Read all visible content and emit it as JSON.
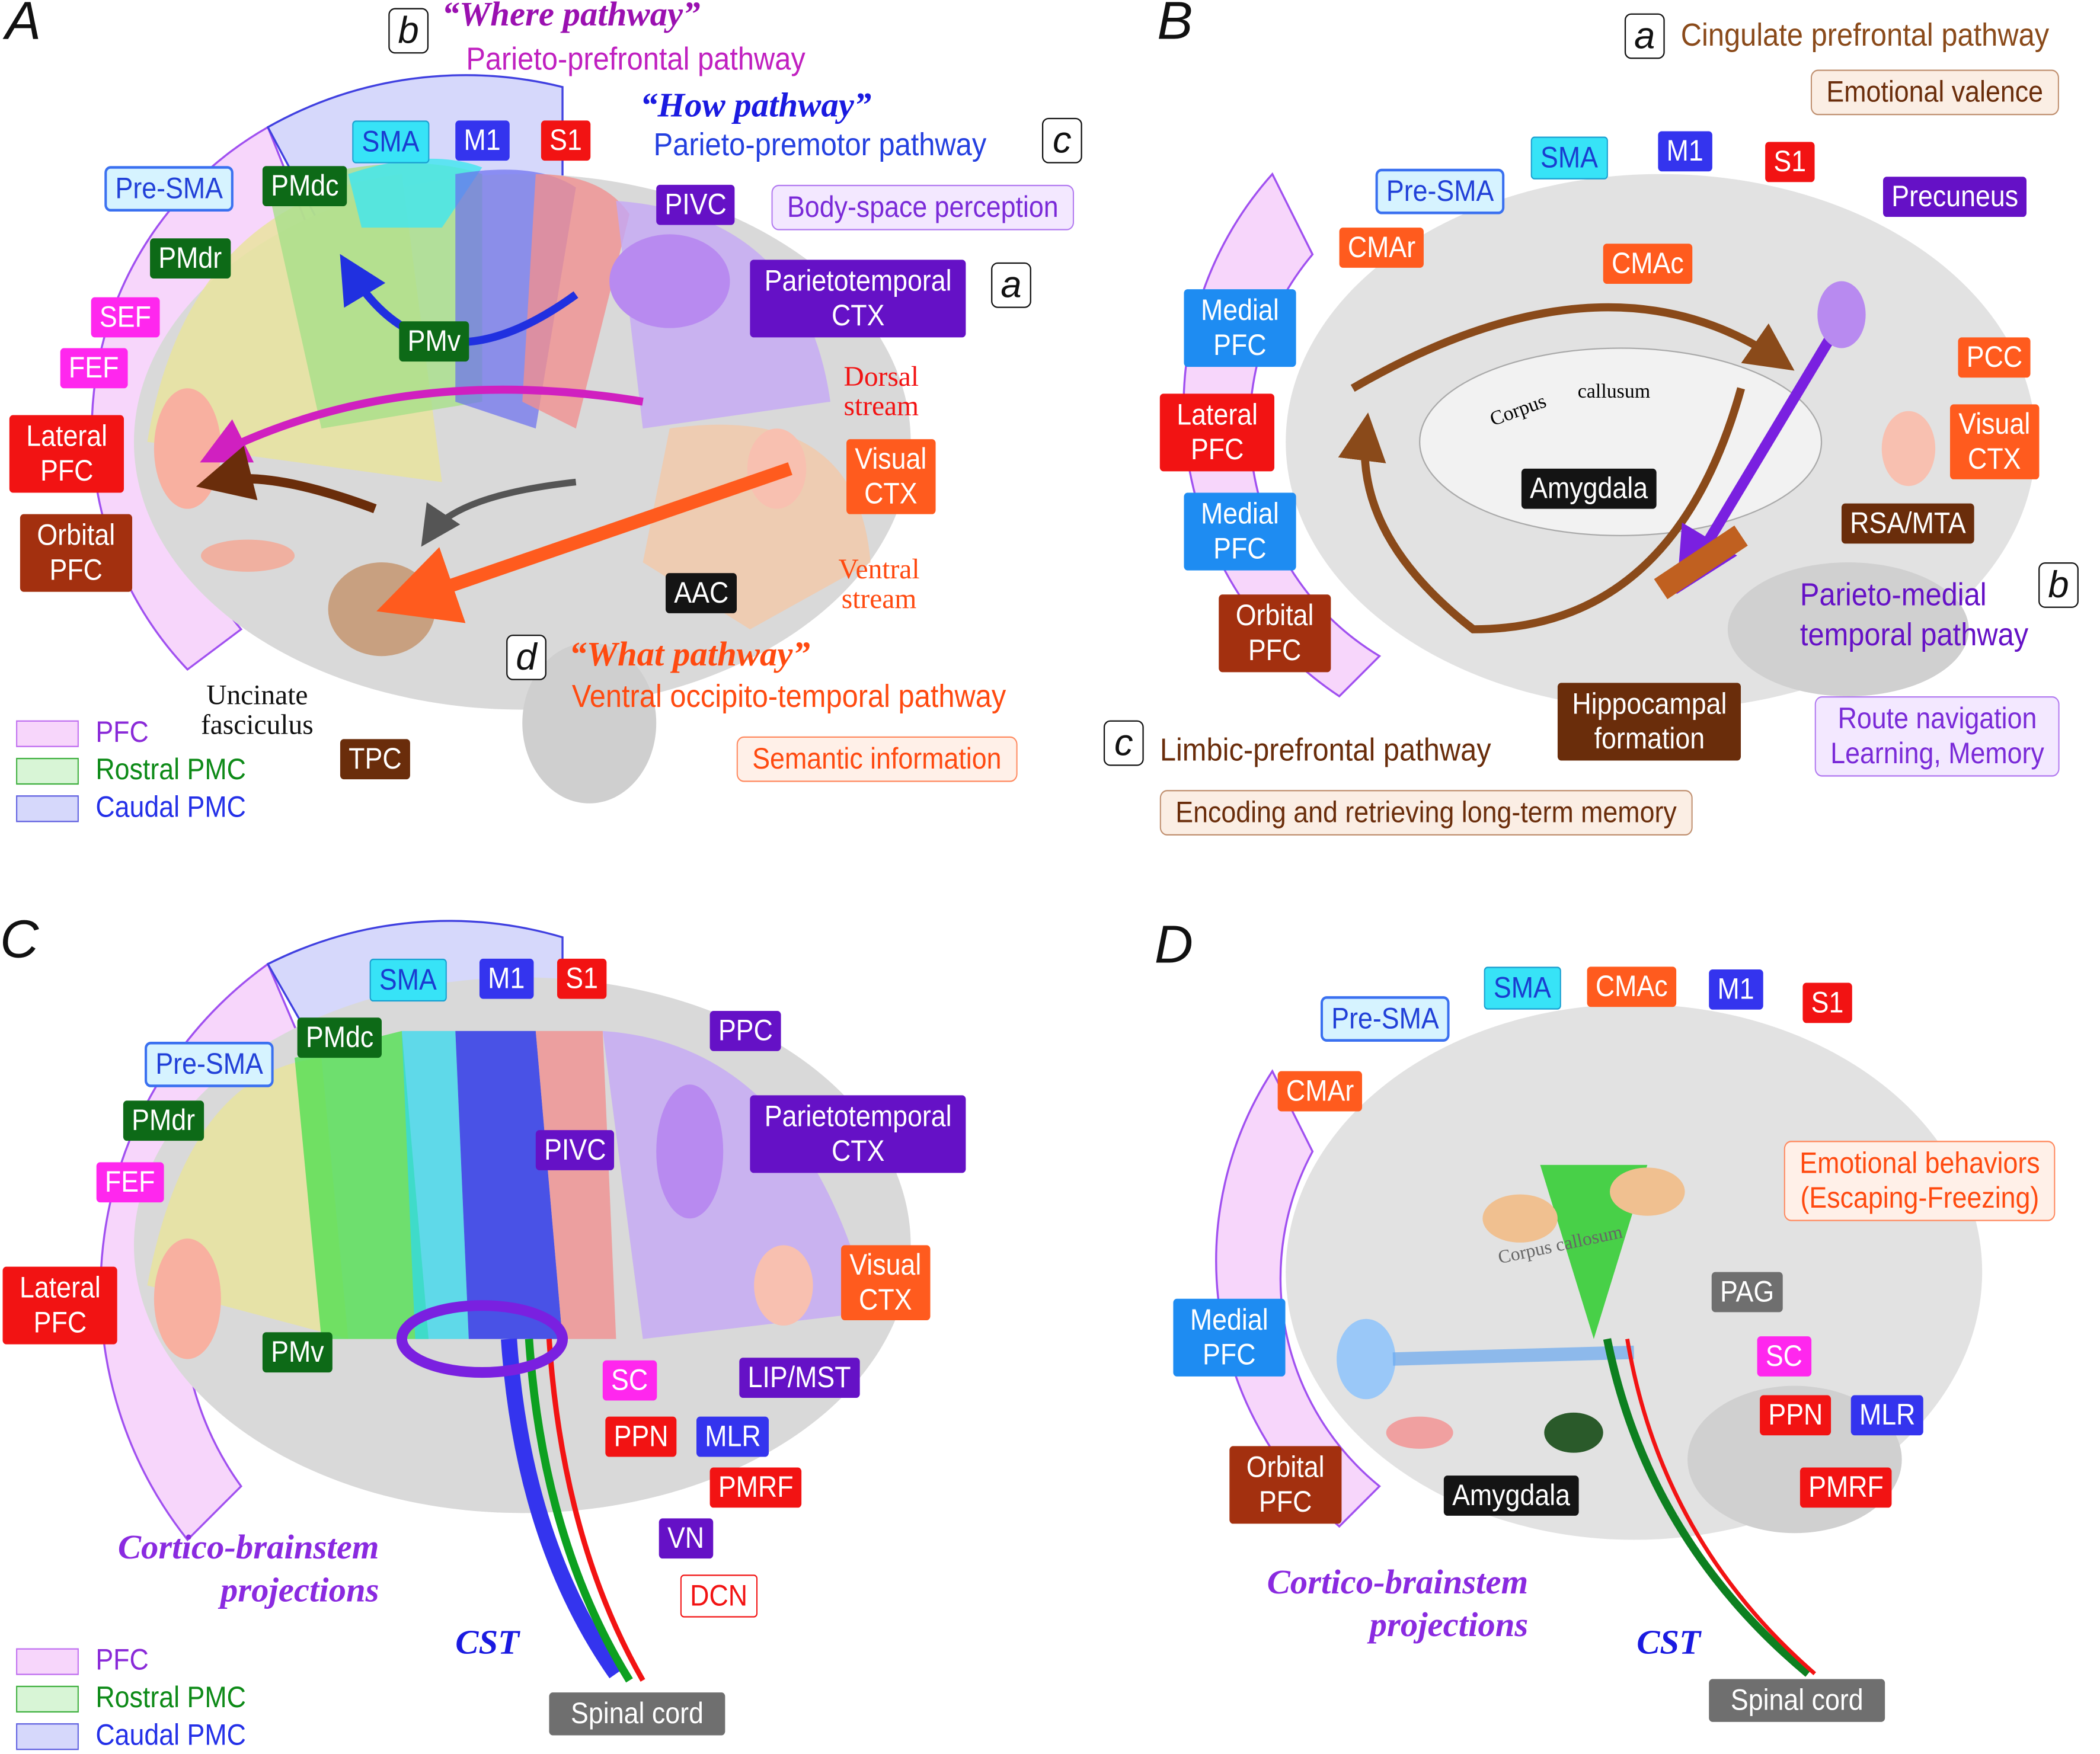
{
  "colors": {
    "pfc": "#f7d6fb",
    "rostral_pmc": "#d8f5d6",
    "caudal_pmc": "#d6d8fb",
    "cyan": "#37e3f7",
    "blue": "#3434ee",
    "red": "#f21313",
    "green": "#0d6a17",
    "magenta": "#ff27ee",
    "purple": "#6511c6",
    "orange": "#ff5b1e",
    "brown": "#6a2d0b"
  },
  "legend": {
    "pfc": "PFC",
    "rostral": "Rostral PMC",
    "caudal": "Caudal PMC"
  },
  "A": {
    "panel": "A",
    "b": "b",
    "where_title": "“Where pathway”",
    "where_sub": "Parieto-prefrontal pathway",
    "how_title": "“How pathway”",
    "how_sub": "Parieto-premotor pathway",
    "c": "c",
    "sma": "SMA",
    "m1": "M1",
    "s1": "S1",
    "presma": "Pre-SMA",
    "pmdc": "PMdc",
    "pmdr": "PMdr",
    "sef": "SEF",
    "fef": "FEF",
    "pmv": "PMv",
    "pivc": "PIVC",
    "body_space": "Body-space perception",
    "parietotemporal": "Parietotemporal\nCTX",
    "a": "a",
    "dorsal": "Dorsal\nstream",
    "visual": "Visual\nCTX",
    "ventral": "Ventral\nstream",
    "aac": "AAC",
    "d": "d",
    "what_title": "“What pathway”",
    "what_sub": "Ventral occipito-temporal pathway",
    "semantic": "Semantic information",
    "lateral_pfc": "Lateral\nPFC",
    "orbital_pfc": "Orbital\nPFC",
    "uncinate": "Uncinate\nfasciculus",
    "tpc": "TPC"
  },
  "B": {
    "panel": "B",
    "a": "a",
    "cingulate": "Cingulate prefrontal pathway",
    "emotional_valence": "Emotional valence",
    "sma": "SMA",
    "m1": "M1",
    "s1": "S1",
    "presma": "Pre-SMA",
    "precuneus": "Precuneus",
    "cmar": "CMAr",
    "cmac": "CMAc",
    "medial_pfc1": "Medial\nPFC",
    "pcc": "PCC",
    "lateral_pfc": "Lateral\nPFC",
    "corpus": "Corpus",
    "callusum": "callusum",
    "visual": "Visual\nCTX",
    "medial_pfc2": "Medial\nPFC",
    "amygdala": "Amygdala",
    "rsa": "RSA/MTA",
    "orbital_pfc": "Orbital\nPFC",
    "parieto_medial": "Parieto-medial\ntemporal pathway",
    "b": "b",
    "hippocampal": "Hippocampal\nformation",
    "route": "Route navigation\nLearning, Memory",
    "c": "c",
    "limbic": "Limbic-prefrontal pathway",
    "encoding": "Encoding and retrieving long-term memory"
  },
  "C": {
    "panel": "C",
    "sma": "SMA",
    "m1": "M1",
    "s1": "S1",
    "pmdc": "PMdc",
    "presma": "Pre-SMA",
    "ppc": "PPC",
    "pmdr": "PMdr",
    "pivc": "PIVC",
    "parietotemporal": "Parietotemporal\nCTX",
    "fef": "FEF",
    "visual": "Visual\nCTX",
    "lateral_pfc": "Lateral\nPFC",
    "pmv": "PMv",
    "sc": "SC",
    "lip": "LIP/MST",
    "ppn": "PPN",
    "mlr": "MLR",
    "pmrf": "PMRF",
    "vn": "VN",
    "dcn": "DCN",
    "cortico": "Cortico-brainstem\nprojections",
    "cst": "CST",
    "spinal": "Spinal cord"
  },
  "D": {
    "panel": "D",
    "sma": "SMA",
    "cmac": "CMAc",
    "m1": "M1",
    "s1": "S1",
    "presma": "Pre-SMA",
    "cmar": "CMAr",
    "emotional": "Emotional behaviors\n(Escaping-Freezing)",
    "pag": "PAG",
    "medial_pfc": "Medial\nPFC",
    "sc": "SC",
    "ppn": "PPN",
    "mlr": "MLR",
    "pmrf": "PMRF",
    "orbital_pfc": "Orbital\nPFC",
    "amygdala": "Amygdala",
    "corpus": "Corpus callosum",
    "cortico": "Cortico-brainstem\nprojections",
    "cst": "CST",
    "spinal": "Spinal cord"
  }
}
